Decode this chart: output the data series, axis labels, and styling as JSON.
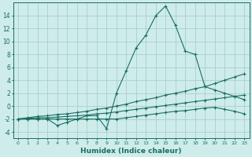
{
  "xlabel": "Humidex (Indice chaleur)",
  "background_color": "#ceecea",
  "grid_color": "#aacfcb",
  "line_color": "#1a6e62",
  "x_values": [
    0,
    1,
    2,
    3,
    4,
    5,
    6,
    7,
    8,
    9,
    10,
    11,
    12,
    13,
    14,
    15,
    16,
    17,
    18,
    19,
    20,
    21,
    22,
    23
  ],
  "series_main": [
    -2,
    -2,
    -2,
    -2,
    -3,
    -2.5,
    -2,
    -1.5,
    -1.5,
    -3.5,
    2,
    5.5,
    9,
    11,
    14,
    15.5,
    12.5,
    8.5,
    8,
    3,
    2.5,
    2,
    1.5,
    1
  ],
  "series_a": [
    -2,
    -1.8,
    -1.6,
    -1.5,
    -1.3,
    -1.2,
    -1.0,
    -0.8,
    -0.5,
    -0.3,
    0.0,
    0.3,
    0.7,
    1.0,
    1.3,
    1.7,
    2.0,
    2.3,
    2.7,
    3.0,
    3.5,
    4.0,
    4.5,
    5.0
  ],
  "series_b": [
    -2,
    -1.9,
    -1.8,
    -1.8,
    -1.7,
    -1.6,
    -1.5,
    -1.4,
    -1.2,
    -1.1,
    -0.9,
    -0.7,
    -0.5,
    -0.3,
    -0.1,
    0.1,
    0.3,
    0.5,
    0.7,
    0.9,
    1.1,
    1.3,
    1.5,
    1.7
  ],
  "series_c": [
    -2,
    -2,
    -2,
    -2,
    -2,
    -2,
    -2,
    -2,
    -2,
    -2,
    -2,
    -1.8,
    -1.6,
    -1.4,
    -1.2,
    -1.0,
    -0.8,
    -0.7,
    -0.5,
    -0.3,
    -0.2,
    -0.5,
    -0.8,
    -1.2
  ],
  "ylim": [
    -5,
    16
  ],
  "yticks": [
    -4,
    -2,
    0,
    2,
    4,
    6,
    8,
    10,
    12,
    14
  ]
}
